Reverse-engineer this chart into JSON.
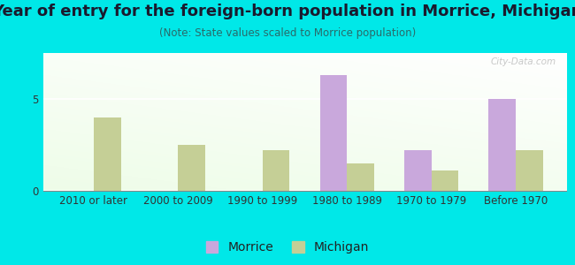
{
  "title": "Year of entry for the foreign-born population in Morrice, Michigan",
  "subtitle": "(Note: State values scaled to Morrice population)",
  "categories": [
    "2010 or later",
    "2000 to 2009",
    "1990 to 1999",
    "1980 to 1989",
    "1970 to 1979",
    "Before 1970"
  ],
  "morrice_values": [
    0,
    0,
    0,
    6.3,
    2.2,
    5.0
  ],
  "michigan_values": [
    4.0,
    2.5,
    2.2,
    1.5,
    1.1,
    2.2
  ],
  "morrice_color": "#c9a8dc",
  "michigan_color": "#c5cf96",
  "background_outer": "#00e8e8",
  "yticks": [
    0,
    5
  ],
  "ylim": [
    0,
    7.5
  ],
  "bar_width": 0.32,
  "title_fontsize": 13,
  "subtitle_fontsize": 8.5,
  "legend_fontsize": 10,
  "tick_fontsize": 8.5,
  "title_color": "#1a1a2e",
  "subtitle_color": "#2a6a6a",
  "watermark_text": "City-Data.com"
}
